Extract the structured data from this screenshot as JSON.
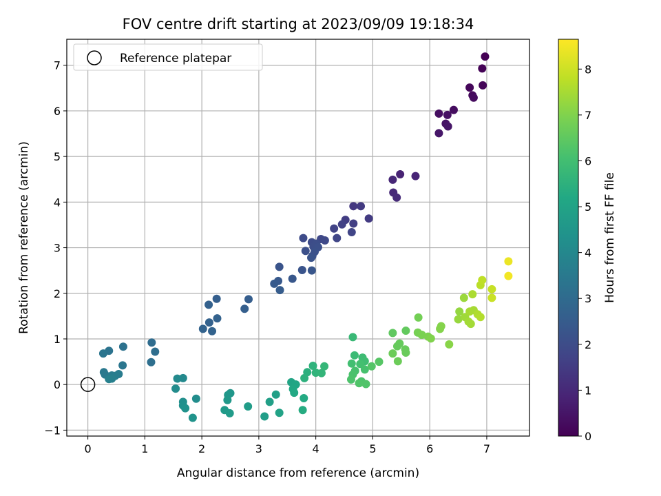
{
  "chart_data": {
    "type": "scatter",
    "title": "FOV centre drift starting at 2023/09/09 19:18:34",
    "xlabel": "Angular distance from reference (arcmin)",
    "ylabel": "Rotation from reference (arcmin)",
    "xlim": [
      -0.37,
      7.75
    ],
    "ylim": [
      -1.13,
      7.57
    ],
    "xticks": [
      0,
      1,
      2,
      3,
      4,
      5,
      6,
      7
    ],
    "yticks": [
      -1,
      0,
      1,
      2,
      3,
      4,
      5,
      6,
      7
    ],
    "grid": true,
    "legend": {
      "position": "top-left",
      "entries": [
        "Reference platepar"
      ]
    },
    "reference_point": {
      "x": 0,
      "y": 0,
      "marker": "hollow-circle",
      "label": "Reference platepar"
    },
    "colorbar": {
      "label": "Hours from first FF file",
      "colormap": "viridis",
      "range": [
        0,
        8.65
      ],
      "ticks": [
        0,
        1,
        2,
        3,
        4,
        5,
        6,
        7,
        8
      ]
    },
    "points": [
      {
        "x": 6.97,
        "y": 7.19,
        "h": 0.0
      },
      {
        "x": 6.92,
        "y": 6.93,
        "h": 0.05
      },
      {
        "x": 6.93,
        "y": 6.56,
        "h": 0.1
      },
      {
        "x": 6.7,
        "y": 6.51,
        "h": 0.15
      },
      {
        "x": 6.75,
        "y": 6.34,
        "h": 0.2
      },
      {
        "x": 6.77,
        "y": 6.29,
        "h": 0.25
      },
      {
        "x": 6.42,
        "y": 6.02,
        "h": 0.3
      },
      {
        "x": 6.16,
        "y": 5.94,
        "h": 0.35
      },
      {
        "x": 6.31,
        "y": 5.91,
        "h": 0.4
      },
      {
        "x": 6.28,
        "y": 5.72,
        "h": 0.45
      },
      {
        "x": 6.32,
        "y": 5.66,
        "h": 0.5
      },
      {
        "x": 6.16,
        "y": 5.51,
        "h": 0.55
      },
      {
        "x": 5.48,
        "y": 4.61,
        "h": 0.85
      },
      {
        "x": 5.75,
        "y": 4.57,
        "h": 0.9
      },
      {
        "x": 5.35,
        "y": 4.49,
        "h": 0.95
      },
      {
        "x": 5.36,
        "y": 4.21,
        "h": 1.0
      },
      {
        "x": 5.42,
        "y": 4.1,
        "h": 1.05
      },
      {
        "x": 4.66,
        "y": 3.91,
        "h": 1.4
      },
      {
        "x": 4.79,
        "y": 3.91,
        "h": 1.45
      },
      {
        "x": 4.93,
        "y": 3.64,
        "h": 1.5
      },
      {
        "x": 4.52,
        "y": 3.61,
        "h": 1.55
      },
      {
        "x": 4.66,
        "y": 3.53,
        "h": 1.6
      },
      {
        "x": 4.46,
        "y": 3.51,
        "h": 1.65
      },
      {
        "x": 4.32,
        "y": 3.42,
        "h": 1.7
      },
      {
        "x": 4.63,
        "y": 3.34,
        "h": 1.75
      },
      {
        "x": 4.37,
        "y": 3.21,
        "h": 1.8
      },
      {
        "x": 4.09,
        "y": 3.19,
        "h": 1.85
      },
      {
        "x": 4.16,
        "y": 3.16,
        "h": 1.9
      },
      {
        "x": 3.78,
        "y": 3.21,
        "h": 1.95
      },
      {
        "x": 3.93,
        "y": 3.12,
        "h": 2.0
      },
      {
        "x": 4.01,
        "y": 3.09,
        "h": 2.05
      },
      {
        "x": 3.96,
        "y": 3.02,
        "h": 2.05
      },
      {
        "x": 4.04,
        "y": 3.01,
        "h": 2.1
      },
      {
        "x": 3.82,
        "y": 2.93,
        "h": 2.1
      },
      {
        "x": 3.98,
        "y": 2.91,
        "h": 2.15
      },
      {
        "x": 3.94,
        "y": 2.82,
        "h": 2.15
      },
      {
        "x": 3.92,
        "y": 2.78,
        "h": 2.2
      },
      {
        "x": 3.36,
        "y": 2.58,
        "h": 2.25
      },
      {
        "x": 3.76,
        "y": 2.51,
        "h": 2.25
      },
      {
        "x": 3.93,
        "y": 2.5,
        "h": 2.3
      },
      {
        "x": 3.59,
        "y": 2.32,
        "h": 2.35
      },
      {
        "x": 3.34,
        "y": 2.27,
        "h": 2.4
      },
      {
        "x": 3.27,
        "y": 2.21,
        "h": 2.45
      },
      {
        "x": 3.37,
        "y": 2.07,
        "h": 2.5
      },
      {
        "x": 2.82,
        "y": 1.87,
        "h": 2.55
      },
      {
        "x": 2.75,
        "y": 1.66,
        "h": 2.6
      },
      {
        "x": 2.26,
        "y": 1.88,
        "h": 2.6
      },
      {
        "x": 2.12,
        "y": 1.75,
        "h": 2.65
      },
      {
        "x": 2.27,
        "y": 1.45,
        "h": 2.7
      },
      {
        "x": 2.13,
        "y": 1.36,
        "h": 2.7
      },
      {
        "x": 2.02,
        "y": 1.22,
        "h": 2.75
      },
      {
        "x": 2.18,
        "y": 1.17,
        "h": 2.75
      },
      {
        "x": 1.12,
        "y": 0.92,
        "h": 3.05
      },
      {
        "x": 1.18,
        "y": 0.72,
        "h": 3.1
      },
      {
        "x": 1.11,
        "y": 0.49,
        "h": 3.15
      },
      {
        "x": 0.62,
        "y": 0.83,
        "h": 3.25
      },
      {
        "x": 0.37,
        "y": 0.74,
        "h": 3.3
      },
      {
        "x": 0.27,
        "y": 0.68,
        "h": 3.35
      },
      {
        "x": 0.61,
        "y": 0.42,
        "h": 3.4
      },
      {
        "x": 0.28,
        "y": 0.27,
        "h": 3.45
      },
      {
        "x": 0.3,
        "y": 0.22,
        "h": 3.5
      },
      {
        "x": 0.42,
        "y": 0.2,
        "h": 3.55
      },
      {
        "x": 0.54,
        "y": 0.23,
        "h": 3.6
      },
      {
        "x": 0.48,
        "y": 0.19,
        "h": 3.65
      },
      {
        "x": 0.42,
        "y": 0.13,
        "h": 3.7
      },
      {
        "x": 0.37,
        "y": 0.12,
        "h": 3.75
      },
      {
        "x": 1.67,
        "y": 0.14,
        "h": 4.05
      },
      {
        "x": 1.57,
        "y": 0.13,
        "h": 4.1
      },
      {
        "x": 1.54,
        "y": -0.09,
        "h": 4.15
      },
      {
        "x": 1.9,
        "y": -0.31,
        "h": 4.2
      },
      {
        "x": 1.67,
        "y": -0.38,
        "h": 4.25
      },
      {
        "x": 1.67,
        "y": -0.46,
        "h": 4.3
      },
      {
        "x": 1.71,
        "y": -0.52,
        "h": 4.35
      },
      {
        "x": 1.84,
        "y": -0.73,
        "h": 4.4
      },
      {
        "x": 2.5,
        "y": -0.19,
        "h": 4.5
      },
      {
        "x": 2.46,
        "y": -0.23,
        "h": 4.55
      },
      {
        "x": 2.45,
        "y": -0.34,
        "h": 4.6
      },
      {
        "x": 2.4,
        "y": -0.56,
        "h": 4.65
      },
      {
        "x": 2.49,
        "y": -0.63,
        "h": 4.7
      },
      {
        "x": 2.81,
        "y": -0.48,
        "h": 4.75
      },
      {
        "x": 3.1,
        "y": -0.7,
        "h": 4.8
      },
      {
        "x": 3.19,
        "y": -0.38,
        "h": 4.85
      },
      {
        "x": 3.3,
        "y": -0.22,
        "h": 4.9
      },
      {
        "x": 3.36,
        "y": -0.62,
        "h": 4.95
      },
      {
        "x": 3.57,
        "y": 0.05,
        "h": 5.05
      },
      {
        "x": 3.65,
        "y": 0.0,
        "h": 5.1
      },
      {
        "x": 3.6,
        "y": -0.1,
        "h": 5.15
      },
      {
        "x": 3.62,
        "y": -0.18,
        "h": 5.2
      },
      {
        "x": 3.79,
        "y": -0.3,
        "h": 5.25
      },
      {
        "x": 3.77,
        "y": -0.56,
        "h": 5.3
      },
      {
        "x": 3.85,
        "y": 0.27,
        "h": 5.45
      },
      {
        "x": 3.8,
        "y": 0.14,
        "h": 5.5
      },
      {
        "x": 3.95,
        "y": 0.41,
        "h": 5.55
      },
      {
        "x": 4.0,
        "y": 0.26,
        "h": 5.6
      },
      {
        "x": 4.1,
        "y": 0.25,
        "h": 5.65
      },
      {
        "x": 4.15,
        "y": 0.4,
        "h": 5.7
      },
      {
        "x": 4.65,
        "y": 1.04,
        "h": 5.8
      },
      {
        "x": 4.68,
        "y": 0.64,
        "h": 5.85
      },
      {
        "x": 4.82,
        "y": 0.59,
        "h": 5.9
      },
      {
        "x": 4.86,
        "y": 0.51,
        "h": 5.95
      },
      {
        "x": 4.63,
        "y": 0.46,
        "h": 6.0
      },
      {
        "x": 4.78,
        "y": 0.45,
        "h": 6.05
      },
      {
        "x": 4.69,
        "y": 0.3,
        "h": 6.1
      },
      {
        "x": 4.86,
        "y": 0.33,
        "h": 6.1
      },
      {
        "x": 4.65,
        "y": 0.22,
        "h": 6.15
      },
      {
        "x": 4.62,
        "y": 0.11,
        "h": 6.2
      },
      {
        "x": 4.8,
        "y": 0.07,
        "h": 6.2
      },
      {
        "x": 4.76,
        "y": 0.03,
        "h": 6.25
      },
      {
        "x": 4.88,
        "y": 0.01,
        "h": 6.25
      },
      {
        "x": 4.98,
        "y": 0.4,
        "h": 6.3
      },
      {
        "x": 5.11,
        "y": 0.5,
        "h": 6.35
      },
      {
        "x": 5.35,
        "y": 1.13,
        "h": 6.5
      },
      {
        "x": 5.58,
        "y": 1.18,
        "h": 6.55
      },
      {
        "x": 5.47,
        "y": 0.9,
        "h": 6.6
      },
      {
        "x": 5.43,
        "y": 0.84,
        "h": 6.6
      },
      {
        "x": 5.57,
        "y": 0.77,
        "h": 6.65
      },
      {
        "x": 5.58,
        "y": 0.7,
        "h": 6.65
      },
      {
        "x": 5.35,
        "y": 0.68,
        "h": 6.7
      },
      {
        "x": 5.44,
        "y": 0.51,
        "h": 6.7
      },
      {
        "x": 5.8,
        "y": 1.47,
        "h": 6.8
      },
      {
        "x": 5.79,
        "y": 1.14,
        "h": 6.85
      },
      {
        "x": 5.86,
        "y": 1.09,
        "h": 6.9
      },
      {
        "x": 5.97,
        "y": 1.05,
        "h": 6.95
      },
      {
        "x": 6.02,
        "y": 1.01,
        "h": 7.0
      },
      {
        "x": 6.2,
        "y": 1.28,
        "h": 7.05
      },
      {
        "x": 6.18,
        "y": 1.22,
        "h": 7.05
      },
      {
        "x": 6.34,
        "y": 0.88,
        "h": 7.1
      },
      {
        "x": 6.52,
        "y": 1.6,
        "h": 7.25
      },
      {
        "x": 6.5,
        "y": 1.43,
        "h": 7.3
      },
      {
        "x": 6.6,
        "y": 1.9,
        "h": 7.35
      },
      {
        "x": 6.62,
        "y": 1.48,
        "h": 7.4
      },
      {
        "x": 6.68,
        "y": 1.38,
        "h": 7.45
      },
      {
        "x": 6.72,
        "y": 1.33,
        "h": 7.45
      },
      {
        "x": 6.7,
        "y": 1.6,
        "h": 7.5
      },
      {
        "x": 6.77,
        "y": 1.63,
        "h": 7.5
      },
      {
        "x": 6.75,
        "y": 1.98,
        "h": 7.55
      },
      {
        "x": 6.84,
        "y": 1.54,
        "h": 7.6
      },
      {
        "x": 6.89,
        "y": 1.48,
        "h": 7.65
      },
      {
        "x": 6.89,
        "y": 2.18,
        "h": 7.75
      },
      {
        "x": 6.92,
        "y": 2.29,
        "h": 7.8
      },
      {
        "x": 7.09,
        "y": 2.09,
        "h": 7.9
      },
      {
        "x": 7.09,
        "y": 1.9,
        "h": 7.95
      },
      {
        "x": 7.38,
        "y": 2.7,
        "h": 8.4
      },
      {
        "x": 7.38,
        "y": 2.38,
        "h": 8.5
      }
    ]
  }
}
